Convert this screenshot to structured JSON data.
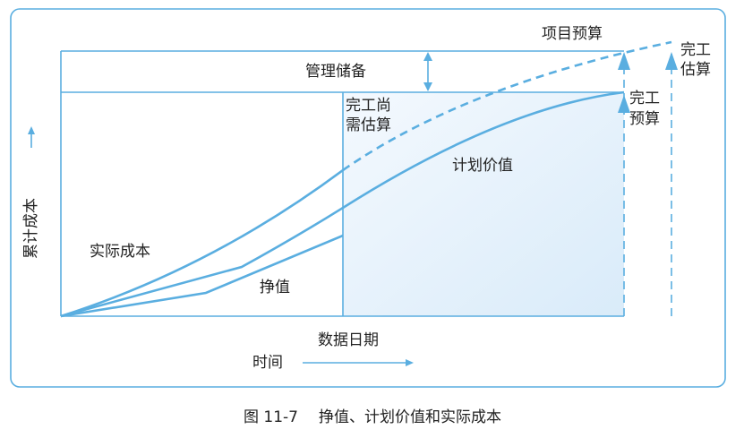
{
  "labels": {
    "project_budget": "项目预算",
    "eac": [
      "完工",
      "估算"
    ],
    "management_reserve": "管理储备",
    "etc": [
      "完工尚",
      "需估算"
    ],
    "bac": [
      "完工",
      "预算"
    ],
    "planned_value": "计划价值",
    "actual_cost": "实际成本",
    "earned_value": "挣值",
    "data_date": "数据日期"
  },
  "axes": {
    "x": "时间",
    "y": "累计成本"
  },
  "caption": {
    "figure": "图 11-7",
    "title": "挣值、计划价值和实际成本"
  }
}
